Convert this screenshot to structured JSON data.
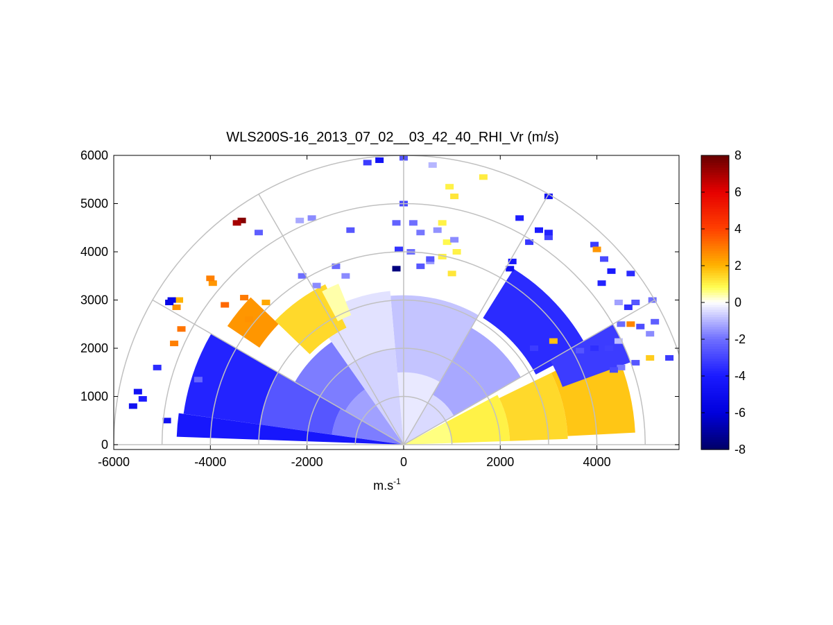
{
  "chart_data": {
    "type": "heatmap",
    "subtype": "polar-rhi-sector",
    "title": "WLS200S-16_2013_07_02__03_42_40_RHI_Vr (m/s)",
    "xlabel_base": "m.s",
    "xlabel_exp": "-1",
    "ylabel": "",
    "xlim": [
      -6000,
      5700
    ],
    "ylim": [
      -100,
      6000
    ],
    "xticks": [
      -6000,
      -4000,
      -2000,
      0,
      2000,
      4000
    ],
    "xtick_labels": [
      "-6000",
      "-4000",
      "-2000",
      "0",
      "2000",
      "4000"
    ],
    "yticks": [
      0,
      1000,
      2000,
      3000,
      4000,
      5000,
      6000
    ],
    "ytick_labels": [
      "0",
      "1000",
      "2000",
      "3000",
      "4000",
      "5000",
      "6000"
    ],
    "polar_grid": {
      "ring_radii": [
        1000,
        2000,
        3000,
        4000,
        5000,
        6000
      ],
      "spoke_angles_deg": [
        0,
        30,
        60,
        90,
        120,
        150,
        180
      ],
      "grid_color": "#c0c0c0"
    },
    "colorbar": {
      "vmin": -8,
      "vmax": 8,
      "ticks": [
        -8,
        -6,
        -4,
        -2,
        0,
        2,
        4,
        6,
        8
      ],
      "tick_labels": [
        "-8",
        "-6",
        "-4",
        "-2",
        "0",
        "2",
        "4",
        "6",
        "8"
      ],
      "colormap": "blue-white-yellow-red",
      "color_stops": [
        {
          "v": -8,
          "color": "#000066"
        },
        {
          "v": -6,
          "color": "#0000dd"
        },
        {
          "v": -4,
          "color": "#1a1aff"
        },
        {
          "v": -2,
          "color": "#6f6fff"
        },
        {
          "v": -0.8,
          "color": "#c4c4ff"
        },
        {
          "v": 0,
          "color": "#ffffff"
        },
        {
          "v": 0.8,
          "color": "#ffff55"
        },
        {
          "v": 2,
          "color": "#ffb300"
        },
        {
          "v": 4,
          "color": "#ff4000"
        },
        {
          "v": 6,
          "color": "#e60000"
        },
        {
          "v": 8,
          "color": "#660000"
        }
      ]
    },
    "sectors": [
      {
        "angle_from": 2,
        "angle_to": 28,
        "range_from": 0,
        "range_to": 1000,
        "value": 0.6
      },
      {
        "angle_from": 2,
        "angle_to": 28,
        "range_from": 1000,
        "range_to": 2200,
        "value": 1.0
      },
      {
        "angle_from": 2,
        "angle_to": 26,
        "range_from": 2200,
        "range_to": 3400,
        "value": 1.4
      },
      {
        "angle_from": 3,
        "angle_to": 26,
        "range_from": 3400,
        "range_to": 4800,
        "value": 1.7
      },
      {
        "angle_from": 30,
        "angle_to": 60,
        "range_from": 0,
        "range_to": 1200,
        "value": -0.5
      },
      {
        "angle_from": 30,
        "angle_to": 60,
        "range_from": 1200,
        "range_to": 2800,
        "value": -1.2
      },
      {
        "angle_from": 60,
        "angle_to": 95,
        "range_from": 0,
        "range_to": 1500,
        "value": -0.3
      },
      {
        "angle_from": 60,
        "angle_to": 95,
        "range_from": 1500,
        "range_to": 3100,
        "value": -0.8
      },
      {
        "angle_from": 95,
        "angle_to": 125,
        "range_from": 0,
        "range_to": 2000,
        "value": -0.6
      },
      {
        "angle_from": 95,
        "angle_to": 125,
        "range_from": 2000,
        "range_to": 3200,
        "value": -0.4
      },
      {
        "angle_from": 125,
        "angle_to": 150,
        "range_from": 0,
        "range_to": 1400,
        "value": -1.3
      },
      {
        "angle_from": 125,
        "angle_to": 150,
        "range_from": 1400,
        "range_to": 2600,
        "value": -1.8
      },
      {
        "angle_from": 150,
        "angle_to": 172,
        "range_from": 0,
        "range_to": 1500,
        "value": -1.8
      },
      {
        "angle_from": 150,
        "angle_to": 172,
        "range_from": 1500,
        "range_to": 3000,
        "value": -2.6
      },
      {
        "angle_from": 150,
        "angle_to": 172,
        "range_from": 3000,
        "range_to": 4600,
        "value": -3.8
      },
      {
        "angle_from": 172,
        "angle_to": 178,
        "range_from": 0,
        "range_to": 4700,
        "value": -4.2
      },
      {
        "angle_from": 28,
        "angle_to": 58,
        "range_from": 3100,
        "range_to": 4300,
        "value": -3.6
      },
      {
        "angle_from": 20,
        "angle_to": 30,
        "range_from": 3500,
        "range_to": 5000,
        "value": -3.2
      },
      {
        "angle_from": 116,
        "angle_to": 136,
        "range_from": 2700,
        "range_to": 3700,
        "value": 1.4
      },
      {
        "angle_from": 136,
        "angle_to": 146,
        "range_from": 3600,
        "range_to": 4400,
        "value": 2.5
      },
      {
        "angle_from": 112,
        "angle_to": 118,
        "range_from": 2900,
        "range_to": 3600,
        "value": 0.4
      }
    ],
    "points": [
      {
        "x": -3350,
        "y": 4650,
        "value": 7.5
      },
      {
        "x": -3450,
        "y": 4600,
        "value": 7.0
      },
      {
        "x": -4700,
        "y": 2850,
        "value": 2.6
      },
      {
        "x": -4750,
        "y": 2100,
        "value": 2.9
      },
      {
        "x": -4600,
        "y": 2400,
        "value": 3.1
      },
      {
        "x": -3950,
        "y": 3350,
        "value": 2.5
      },
      {
        "x": -4000,
        "y": 3450,
        "value": 2.9
      },
      {
        "x": -3700,
        "y": 2900,
        "value": 3.3
      },
      {
        "x": -3300,
        "y": 3050,
        "value": 3.0
      },
      {
        "x": -3200,
        "y": 2600,
        "value": 2.6
      },
      {
        "x": -2850,
        "y": 2950,
        "value": 2.2
      },
      {
        "x": -4650,
        "y": 3000,
        "value": 2.0
      },
      {
        "x": -4800,
        "y": 3000,
        "value": -5.5
      },
      {
        "x": -4850,
        "y": 2950,
        "value": -5.5
      },
      {
        "x": -5100,
        "y": 1600,
        "value": -3.6
      },
      {
        "x": -5500,
        "y": 1100,
        "value": -4.6
      },
      {
        "x": -5600,
        "y": 800,
        "value": -4.8
      },
      {
        "x": -5400,
        "y": 950,
        "value": -3.9
      },
      {
        "x": -4900,
        "y": 500,
        "value": -4.7
      },
      {
        "x": -4250,
        "y": 1350,
        "value": -2.2
      },
      {
        "x": -3000,
        "y": 4400,
        "value": -2.4
      },
      {
        "x": -2150,
        "y": 4650,
        "value": -1.2
      },
      {
        "x": -1900,
        "y": 4700,
        "value": -1.6
      },
      {
        "x": -1100,
        "y": 4450,
        "value": -2.6
      },
      {
        "x": -2100,
        "y": 3500,
        "value": -2.0
      },
      {
        "x": -1800,
        "y": 3300,
        "value": -1.6
      },
      {
        "x": -1400,
        "y": 3700,
        "value": -2.1
      },
      {
        "x": -1200,
        "y": 3500,
        "value": -1.6
      },
      {
        "x": -150,
        "y": 3650,
        "value": -7.6
      },
      {
        "x": 350,
        "y": 3700,
        "value": -2.6
      },
      {
        "x": 550,
        "y": 3800,
        "value": -1.4
      },
      {
        "x": 800,
        "y": 3900,
        "value": 1.0
      },
      {
        "x": 1000,
        "y": 3550,
        "value": 1.2
      },
      {
        "x": -500,
        "y": 5900,
        "value": -4.6
      },
      {
        "x": -750,
        "y": 5850,
        "value": -3.2
      },
      {
        "x": 0,
        "y": 5950,
        "value": -2.6
      },
      {
        "x": 600,
        "y": 5800,
        "value": -1.0
      },
      {
        "x": 950,
        "y": 5350,
        "value": 1.0
      },
      {
        "x": 1050,
        "y": 5150,
        "value": 1.2
      },
      {
        "x": 1650,
        "y": 5550,
        "value": 1.1
      },
      {
        "x": 0,
        "y": 5000,
        "value": -3.0
      },
      {
        "x": -150,
        "y": 4600,
        "value": -2.3
      },
      {
        "x": 200,
        "y": 4600,
        "value": -2.0
      },
      {
        "x": 350,
        "y": 4400,
        "value": -1.9
      },
      {
        "x": 700,
        "y": 4450,
        "value": -1.5
      },
      {
        "x": 800,
        "y": 4600,
        "value": 1.0
      },
      {
        "x": 900,
        "y": 4200,
        "value": 0.9
      },
      {
        "x": 1050,
        "y": 4250,
        "value": -1.6
      },
      {
        "x": 1100,
        "y": 4000,
        "value": 1.0
      },
      {
        "x": -100,
        "y": 4050,
        "value": -3.4
      },
      {
        "x": 150,
        "y": 4000,
        "value": -2.0
      },
      {
        "x": 550,
        "y": 3850,
        "value": -2.6
      },
      {
        "x": 3000,
        "y": 5150,
        "value": -4.6
      },
      {
        "x": 2400,
        "y": 4700,
        "value": -3.9
      },
      {
        "x": 3000,
        "y": 4300,
        "value": -3.0
      },
      {
        "x": 2250,
        "y": 3800,
        "value": -4.2
      },
      {
        "x": 2200,
        "y": 3650,
        "value": -4.8
      },
      {
        "x": 3950,
        "y": 4150,
        "value": -3.2
      },
      {
        "x": 4150,
        "y": 3850,
        "value": -2.9
      },
      {
        "x": 4000,
        "y": 4050,
        "value": 2.5
      },
      {
        "x": 4800,
        "y": 2950,
        "value": -2.6
      },
      {
        "x": 5100,
        "y": 2300,
        "value": -1.6
      },
      {
        "x": 5200,
        "y": 2550,
        "value": -2.4
      },
      {
        "x": 5150,
        "y": 3000,
        "value": -2.0
      },
      {
        "x": 4500,
        "y": 2500,
        "value": -2.1
      },
      {
        "x": 4700,
        "y": 2500,
        "value": 2.8
      },
      {
        "x": 4800,
        "y": 1700,
        "value": -2.6
      },
      {
        "x": 5100,
        "y": 1800,
        "value": 1.6
      },
      {
        "x": 5500,
        "y": 1800,
        "value": -3.2
      },
      {
        "x": 4500,
        "y": 1600,
        "value": -1.9
      },
      {
        "x": 4350,
        "y": 1550,
        "value": -2.9
      },
      {
        "x": 4250,
        "y": 2000,
        "value": -3.1
      },
      {
        "x": 3950,
        "y": 2000,
        "value": -3.5
      },
      {
        "x": 3650,
        "y": 1950,
        "value": -2.6
      },
      {
        "x": 4450,
        "y": 2150,
        "value": -0.9
      },
      {
        "x": 4900,
        "y": 2450,
        "value": -2.8
      },
      {
        "x": 4700,
        "y": 3550,
        "value": -3.6
      },
      {
        "x": 4100,
        "y": 3350,
        "value": -3.8
      },
      {
        "x": 4300,
        "y": 3600,
        "value": -4.1
      },
      {
        "x": 4650,
        "y": 2850,
        "value": -3.5
      },
      {
        "x": 4450,
        "y": 2950,
        "value": -1.3
      },
      {
        "x": 2800,
        "y": 4450,
        "value": -4.0
      },
      {
        "x": 3000,
        "y": 4400,
        "value": -3.8
      },
      {
        "x": 2600,
        "y": 4200,
        "value": -3.3
      },
      {
        "x": 3100,
        "y": 2150,
        "value": 1.8
      },
      {
        "x": 2700,
        "y": 2000,
        "value": -3.2
      }
    ]
  }
}
